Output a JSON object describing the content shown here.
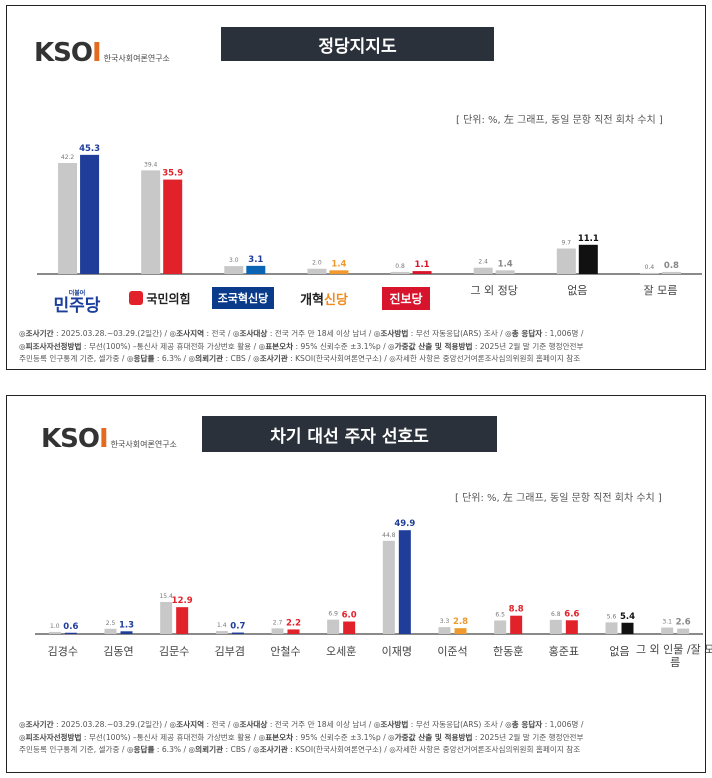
{
  "panel1": {
    "logo": "KSOI",
    "logo_sub": "한국사회여론연구소",
    "title": "정당지지도",
    "unit_note": "[ 단위: %, 左 그래프, 동일 문항 직전 회차 수치 ]",
    "party_labels": {
      "dp_small": "더불어",
      "dp": "민주당",
      "ppp": "국민의힘",
      "cc": "조국혁신당",
      "ref_a": "개혁",
      "ref_b": "신당",
      "jb": "진보당"
    },
    "footer": {
      "line1_parts": [
        {
          "k": "◎조사기간",
          "v": " : 2025.03.28.~03.29.(2일간) / "
        },
        {
          "k": "◎조사지역",
          "v": " : 전국 / "
        },
        {
          "k": "◎조사대상",
          "v": " : 전국 거주 만 18세 이상 남녀 / "
        },
        {
          "k": "◎조사방법",
          "v": " : 무선 자동응답(ARS) 조사 / "
        },
        {
          "k": "◎총 응답자",
          "v": " : 1,006명 /"
        }
      ],
      "line2_parts": [
        {
          "k": "◎피조사자선정방법",
          "v": " : 무선(100%) –통신사 제공 휴대전화 가상번호 활용 / "
        },
        {
          "k": "◎표본오차",
          "v": " : 95% 신뢰수준 ±3.1%p / "
        },
        {
          "k": "◎가중값 산출 및 적용방법",
          "v": " : 2025년 2월 말 기준 행정안전부"
        }
      ],
      "line3_parts": [
        {
          "k": "",
          "v": "주민등록 인구통계 기준, 셀가중 / "
        },
        {
          "k": "◎응답률",
          "v": " : 6.3% / "
        },
        {
          "k": "◎의뢰기관",
          "v": " : CBS / "
        },
        {
          "k": "◎조사기관",
          "v": " : KSOI(한국사회여론연구소) / "
        },
        {
          "k": "",
          "v": "◎자세한 사항은 중앙선거여론조사심의위원회 홈페이지 참조"
        }
      ]
    }
  },
  "panel2": {
    "logo": "KSOI",
    "logo_sub": "한국사회여론연구소",
    "title": "차기 대선 주자 선호도",
    "unit_note": "[ 단위: %, 左 그래프, 동일 문항 직전 회차 수치 ]",
    "footer": {
      "line1_parts": [
        {
          "k": "◎조사기간",
          "v": " : 2025.03.28.~03.29.(2일간) / "
        },
        {
          "k": "◎조사지역",
          "v": " : 전국 / "
        },
        {
          "k": "◎조사대상",
          "v": " : 전국 거주 만 18세 이상 남녀 / "
        },
        {
          "k": "◎조사방법",
          "v": " : 무선 자동응답(ARS) 조사 / "
        },
        {
          "k": "◎총 응답자",
          "v": " : 1,006명 /"
        }
      ],
      "line2_parts": [
        {
          "k": "◎피조사자선정방법",
          "v": " : 무선(100%) –통신사 제공 휴대전화 가상번호 활용 / "
        },
        {
          "k": "◎표본오차",
          "v": " : 95% 신뢰수준 ±3.1%p / "
        },
        {
          "k": "◎가중값 산출 및 적용방법",
          "v": " : 2025년 2월 말 기준 행정안전부"
        }
      ],
      "line3_parts": [
        {
          "k": "",
          "v": "주민등록 인구통계 기준, 셀가중 / "
        },
        {
          "k": "◎응답률",
          "v": " : 6.3% / "
        },
        {
          "k": "◎의뢰기관",
          "v": " : CBS / "
        },
        {
          "k": "◎조사기관",
          "v": " : KSOI(한국사회여론연구소) / "
        },
        {
          "k": "",
          "v": "◎자세한 사항은 중앙선거여론조사심의위원회 홈페이지 참조"
        }
      ]
    }
  },
  "colors": {
    "previous": "#c8c8c8",
    "dp": "#1f3d99",
    "ppp": "#e2222a",
    "cc": "#0a64b4",
    "reform": "#f09a2e",
    "jinbo": "#d7142c",
    "other": "#c8c8c8",
    "none": "#111111",
    "title_bg": "#2b313a"
  },
  "chart_data": [
    {
      "type": "bar",
      "title": "정당지지도",
      "categories": [
        "더불어민주당",
        "국민의힘",
        "조국혁신당",
        "개혁신당",
        "진보당",
        "그 외 정당",
        "없음",
        "잘 모름"
      ],
      "series": [
        {
          "values": [
            42.2,
            39.4,
            3.0,
            2.0,
            0.8,
            2.4,
            9.7,
            0.4
          ]
        },
        {
          "values": [
            45.3,
            35.9,
            3.1,
            1.4,
            1.1,
            1.4,
            11.1,
            0.8
          ],
          "colors": [
            "#1f3d99",
            "#e2222a",
            "#0a64b4",
            "#f09a2e",
            "#d7142c",
            "#c8c8c8",
            "#111111",
            "#c8c8c8"
          ]
        }
      ],
      "ylim": [
        0,
        50
      ]
    },
    {
      "type": "bar",
      "title": "차기 대선 주자 선호도",
      "categories": [
        "김경수",
        "김동연",
        "김문수",
        "김부겸",
        "안철수",
        "오세훈",
        "이재명",
        "이준석",
        "한동훈",
        "홍준표",
        "없음",
        "그 외 인물 /잘 모름"
      ],
      "series": [
        {
          "values": [
            1.0,
            2.5,
            15.4,
            1.4,
            2.7,
            6.9,
            44.8,
            3.3,
            6.5,
            6.8,
            5.6,
            3.1
          ]
        },
        {
          "values": [
            0.6,
            1.3,
            12.9,
            0.7,
            2.2,
            6.0,
            49.9,
            2.8,
            8.8,
            6.6,
            5.4,
            2.6
          ],
          "colors": [
            "#1f3d99",
            "#1f3d99",
            "#e2222a",
            "#1f3d99",
            "#e2222a",
            "#e2222a",
            "#1f3d99",
            "#f09a2e",
            "#e2222a",
            "#e2222a",
            "#111111",
            "#c8c8c8"
          ]
        }
      ],
      "ylim": [
        0,
        55
      ]
    }
  ]
}
